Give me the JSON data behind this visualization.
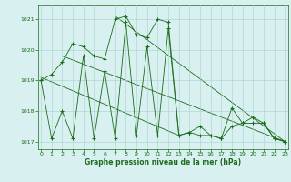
{
  "x": [
    0,
    1,
    2,
    3,
    4,
    5,
    6,
    7,
    8,
    9,
    10,
    11,
    12,
    13,
    14,
    15,
    16,
    17,
    18,
    19,
    20,
    21,
    22,
    23
  ],
  "y_main": [
    1019.0,
    1019.2,
    1019.6,
    1020.2,
    1020.1,
    1019.8,
    1019.7,
    1021.0,
    1021.1,
    1020.5,
    1020.4,
    1021.0,
    1020.9,
    1017.2,
    1017.3,
    1017.5,
    1017.2,
    1017.1,
    1018.1,
    1017.6,
    1017.8,
    1017.6,
    1017.1,
    1017.0
  ],
  "y_low": [
    1019.0,
    1017.1,
    1018.0,
    1017.1,
    1019.8,
    1017.1,
    1019.3,
    1017.1,
    1020.9,
    1017.2,
    1020.1,
    1017.2,
    1020.7,
    1017.2,
    1017.3,
    1017.2,
    1017.2,
    1017.1,
    1017.5,
    1017.6,
    1017.6,
    1017.6,
    1017.1,
    1017.0
  ],
  "trend1_x": [
    0,
    13
  ],
  "trend1_y": [
    1019.1,
    1017.2
  ],
  "trend2_x": [
    2,
    23
  ],
  "trend2_y": [
    1019.8,
    1017.0
  ],
  "trend3_x": [
    7,
    23
  ],
  "trend3_y": [
    1021.1,
    1017.0
  ],
  "ylim_min": 1016.75,
  "ylim_max": 1021.45,
  "yticks": [
    1017,
    1018,
    1019,
    1020,
    1021
  ],
  "xticks": [
    0,
    1,
    2,
    3,
    4,
    5,
    6,
    7,
    8,
    9,
    10,
    11,
    12,
    13,
    14,
    15,
    16,
    17,
    18,
    19,
    20,
    21,
    22,
    23
  ],
  "xlabel": "Graphe pression niveau de la mer (hPa)",
  "line_color": "#1a6b1a",
  "bg_color": "#d8f0f0",
  "grid_color": "#aacfcf",
  "marker": "+",
  "markersize": 3,
  "markeredgewidth": 0.8,
  "linewidth": 0.6,
  "trend_linewidth": 0.6,
  "tick_fontsize": 4.5,
  "xlabel_fontsize": 5.5
}
